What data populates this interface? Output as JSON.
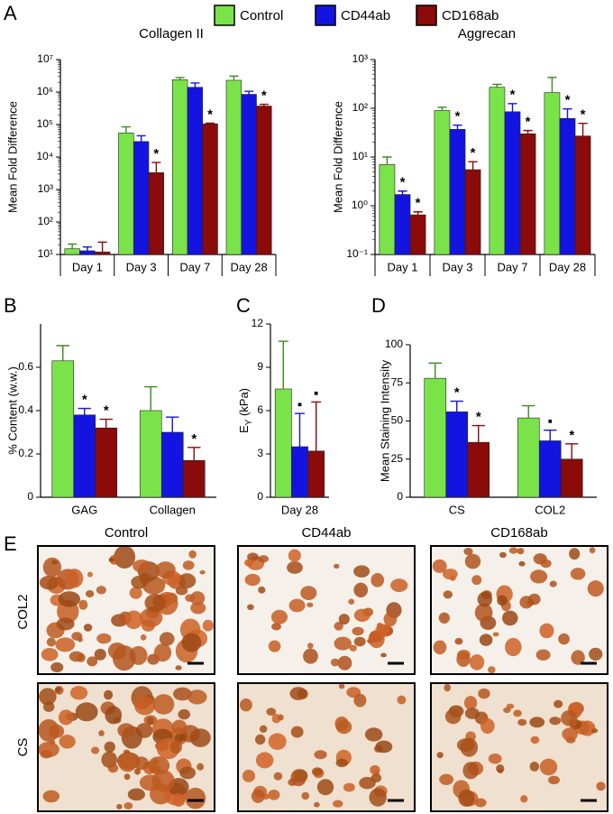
{
  "panel_labels": [
    "A",
    "B",
    "C",
    "D",
    "E"
  ],
  "chart_data": [
    {
      "type": "bar",
      "title": "Collagen II",
      "ylabel": "Mean Fold Difference",
      "log": true,
      "categories": [
        "Day 1",
        "Day 3",
        "Day 7",
        "Day 28"
      ],
      "ylim": [
        10,
        10000000
      ],
      "yticks": [
        {
          "value": 10,
          "label": "10¹"
        },
        {
          "value": 100,
          "label": "10²"
        },
        {
          "value": 1000,
          "label": "10³"
        },
        {
          "value": 10000,
          "label": "10⁴"
        },
        {
          "value": 100000,
          "label": "10⁵"
        },
        {
          "value": 1000000,
          "label": "10⁶"
        },
        {
          "value": 10000000,
          "label": "10⁷"
        }
      ],
      "series": [
        {
          "name": "Control",
          "color": "#7be34a",
          "values": [
            15,
            55000,
            2400000,
            2300000
          ],
          "errors": [
            6,
            30000,
            400000,
            800000
          ],
          "markers": [
            null,
            null,
            null,
            null
          ]
        },
        {
          "name": "CD44ab",
          "color": "#1414e0",
          "values": [
            13,
            30000,
            1400000,
            850000
          ],
          "errors": [
            4,
            15000,
            500000,
            200000
          ],
          "markers": [
            null,
            null,
            null,
            null
          ]
        },
        {
          "name": "CD168ab",
          "color": "#8b0a0a",
          "values": [
            12,
            3300,
            105000,
            370000
          ],
          "errors": [
            12,
            3500,
            5000,
            50000
          ],
          "markers": [
            null,
            "*",
            "*",
            "*"
          ]
        }
      ]
    },
    {
      "type": "bar",
      "title": "Aggrecan",
      "ylabel": "Mean Fold Difference",
      "log": true,
      "categories": [
        "Day 1",
        "Day 3",
        "Day 7",
        "Day 28"
      ],
      "ylim": [
        0.1,
        1000
      ],
      "yticks": [
        {
          "value": 0.1,
          "label": "10⁻¹"
        },
        {
          "value": 1,
          "label": "10⁰"
        },
        {
          "value": 10,
          "label": "10¹"
        },
        {
          "value": 100,
          "label": "10²"
        },
        {
          "value": 1000,
          "label": "10³"
        }
      ],
      "series": [
        {
          "name": "Control",
          "color": "#7be34a",
          "values": [
            7,
            90,
            270,
            210
          ],
          "errors": [
            3,
            15,
            40,
            220
          ],
          "markers": [
            null,
            null,
            null,
            null
          ]
        },
        {
          "name": "CD44ab",
          "color": "#1414e0",
          "values": [
            1.7,
            37,
            85,
            62
          ],
          "errors": [
            0.3,
            8,
            40,
            35
          ],
          "markers": [
            "*",
            "*",
            "*",
            "*"
          ]
        },
        {
          "name": "CD168ab",
          "color": "#8b0a0a",
          "values": [
            0.65,
            5.5,
            30,
            27
          ],
          "errors": [
            0.1,
            2.5,
            5,
            22
          ],
          "markers": [
            "*",
            "*",
            "*",
            "*"
          ]
        }
      ]
    },
    {
      "type": "bar",
      "ylabel": "% Content (w.w.)",
      "log": false,
      "categories": [
        "GAG",
        "Collagen"
      ],
      "ylim": [
        0,
        0.8
      ],
      "yticks": [
        0,
        0.2,
        0.4,
        0.6
      ],
      "series": [
        {
          "name": "Control",
          "color": "#7be34a",
          "values": [
            0.63,
            0.4
          ],
          "errors": [
            0.07,
            0.11
          ],
          "markers": [
            null,
            null
          ]
        },
        {
          "name": "CD44ab",
          "color": "#1414e0",
          "values": [
            0.38,
            0.3
          ],
          "errors": [
            0.03,
            0.07
          ],
          "markers": [
            "*",
            null
          ]
        },
        {
          "name": "CD168ab",
          "color": "#8b0a0a",
          "values": [
            0.32,
            0.17
          ],
          "errors": [
            0.04,
            0.06
          ],
          "markers": [
            "*",
            "*"
          ]
        }
      ]
    },
    {
      "type": "bar",
      "ylabel": [
        "E",
        "Y",
        " (kPa)"
      ],
      "log": false,
      "categories": [
        "Day 28"
      ],
      "ylim": [
        0,
        12
      ],
      "yticks": [
        0,
        3,
        6,
        9,
        12
      ],
      "series": [
        {
          "name": "Control",
          "color": "#7be34a",
          "values": [
            7.5
          ],
          "errors": [
            3.3
          ],
          "markers": [
            null
          ]
        },
        {
          "name": "CD44ab",
          "color": "#1414e0",
          "values": [
            3.5
          ],
          "errors": [
            2.3
          ],
          "markers": [
            "▪"
          ]
        },
        {
          "name": "CD168ab",
          "color": "#8b0a0a",
          "values": [
            3.2
          ],
          "errors": [
            3.4
          ],
          "markers": [
            "▪"
          ]
        }
      ]
    },
    {
      "type": "bar",
      "ylabel": "Mean Staining Intensity",
      "log": false,
      "categories": [
        "CS",
        "COL2"
      ],
      "ylim": [
        0,
        100
      ],
      "yticks": [
        0,
        25,
        50,
        75,
        100
      ],
      "series": [
        {
          "name": "Control",
          "color": "#7be34a",
          "values": [
            78,
            52
          ],
          "errors": [
            10,
            8
          ],
          "markers": [
            null,
            null
          ]
        },
        {
          "name": "CD44ab",
          "color": "#1414e0",
          "values": [
            56,
            37
          ],
          "errors": [
            7,
            7
          ],
          "markers": [
            "*",
            "▪"
          ]
        },
        {
          "name": "CD168ab",
          "color": "#8b0a0a",
          "values": [
            36,
            25
          ],
          "errors": [
            11,
            10
          ],
          "markers": [
            "*",
            "*"
          ]
        }
      ]
    }
  ],
  "micrographs": {
    "columns": [
      "Control",
      "CD44ab",
      "CD168ab"
    ],
    "rows": [
      "COL2",
      "CS"
    ]
  }
}
